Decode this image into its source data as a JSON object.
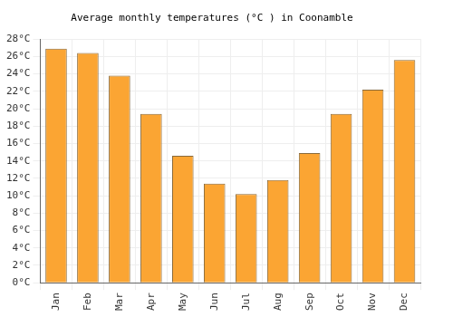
{
  "chart_data": {
    "type": "bar",
    "title": "Average monthly temperatures (°C ) in Coonamble",
    "categories": [
      "Jan",
      "Feb",
      "Mar",
      "Apr",
      "May",
      "Jun",
      "Jul",
      "Aug",
      "Sep",
      "Oct",
      "Nov",
      "Dec"
    ],
    "values": [
      26.9,
      26.4,
      23.8,
      19.4,
      14.6,
      11.4,
      10.2,
      11.8,
      14.9,
      19.4,
      22.2,
      25.6
    ],
    "color": "#fba533",
    "ylim": [
      0,
      28
    ],
    "yticks": [
      {
        "value": 0,
        "label": "0°C"
      },
      {
        "value": 2,
        "label": "2°C"
      },
      {
        "value": 4,
        "label": "4°C"
      },
      {
        "value": 6,
        "label": "6°C"
      },
      {
        "value": 8,
        "label": "8°C"
      },
      {
        "value": 10,
        "label": "10°C"
      },
      {
        "value": 12,
        "label": "12°C"
      },
      {
        "value": 14,
        "label": "14°C"
      },
      {
        "value": 16,
        "label": "16°C"
      },
      {
        "value": 18,
        "label": "18°C"
      },
      {
        "value": 20,
        "label": "20°C"
      },
      {
        "value": 22,
        "label": "22°C"
      },
      {
        "value": 24,
        "label": "24°C"
      },
      {
        "value": 26,
        "label": "26°C"
      },
      {
        "value": 28,
        "label": "28°C"
      }
    ],
    "grid": true
  }
}
